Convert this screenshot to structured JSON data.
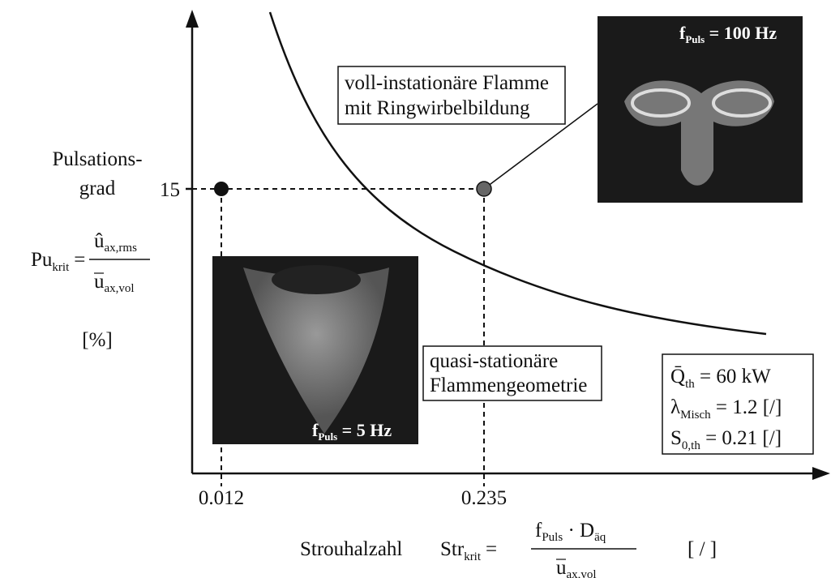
{
  "y_axis": {
    "label": [
      "Pulsations-",
      "grad"
    ],
    "tick": "15",
    "unit": "[%]",
    "formula": {
      "lhs": "Pu",
      "lhs_sub": "krit",
      "eq": "=",
      "num": "û",
      "num_sub": "ax,rms",
      "den": "u",
      "den_sub": "ax,vol"
    }
  },
  "x_axis": {
    "ticks": [
      "0.012",
      "0.235"
    ],
    "label": "Strouhalzahl",
    "unit": "[ / ]",
    "formula": {
      "lhs": "Str",
      "lhs_sub": "krit",
      "eq": "=",
      "num_a": "f",
      "num_a_sub": "Puls",
      "num_b": " · D",
      "num_b_sub": "äq",
      "den": "u",
      "den_sub": "ax,vol"
    }
  },
  "annotations": {
    "unsteady": [
      "voll-instationäre Flamme",
      "mit Ringwirbelbildung"
    ],
    "steady": [
      "quasi-stationäre",
      "Flammengeometrie"
    ]
  },
  "images": {
    "low": {
      "f": "f",
      "sub": "Puls",
      "value": " = 5 Hz"
    },
    "high": {
      "f": "f",
      "sub": "Puls",
      "value": " = 100 Hz"
    }
  },
  "parameters": [
    {
      "sym": "Q̄",
      "sub": "th",
      "value": " = 60 kW"
    },
    {
      "sym": "λ",
      "sub": "Misch",
      "value": " = 1.2 [/]"
    },
    {
      "sym": "S",
      "sub": "0,th",
      "value": " = 0.21 [/]"
    }
  ]
}
